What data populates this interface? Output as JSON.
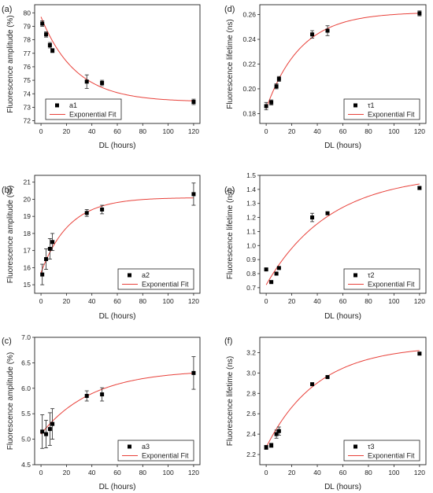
{
  "chart_data": [
    {
      "id": "a",
      "panel_label": "(a)",
      "type": "scatter",
      "xlabel": "DL (hours)",
      "ylabel": "Fluorescence amplitude (%)",
      "xlim": [
        -5,
        125
      ],
      "ylim": [
        71.8,
        80.6
      ],
      "xticks": [
        "0",
        "20",
        "40",
        "60",
        "80",
        "100",
        "120"
      ],
      "yticks": [
        "72",
        "73",
        "74",
        "75",
        "76",
        "77",
        "78",
        "79",
        "80"
      ],
      "legend": {
        "position": "bottom-left",
        "marker_label": "a1",
        "fit_label": "Exponential Fit"
      },
      "series": [
        {
          "name": "a1",
          "x": [
            1,
            4,
            7,
            9,
            36,
            48,
            120
          ],
          "y": [
            79.2,
            78.4,
            77.6,
            77.2,
            74.9,
            74.8,
            73.4
          ],
          "err": [
            0.2,
            0.2,
            0.2,
            0.15,
            0.5,
            0.2,
            0.2
          ]
        }
      ],
      "fit": {
        "y0": 73.4,
        "A": 6.3,
        "t": 27,
        "color": "#e8413a"
      }
    },
    {
      "id": "d",
      "panel_label": "(d)",
      "type": "scatter",
      "xlabel": "DL (hours)",
      "ylabel": "Fluorescence lifetime (ns)",
      "xlim": [
        -5,
        125
      ],
      "ylim": [
        0.172,
        0.268
      ],
      "xticks": [
        "0",
        "20",
        "40",
        "60",
        "80",
        "100",
        "120"
      ],
      "yticks": [
        "0.18",
        "0.20",
        "0.22",
        "0.24",
        "0.26"
      ],
      "legend": {
        "position": "bottom-right",
        "marker_label": "τ1",
        "fit_label": "Exponential Fit"
      },
      "series": [
        {
          "name": "τ1",
          "x": [
            0,
            4,
            8,
            10,
            36,
            48,
            120
          ],
          "y": [
            0.186,
            0.189,
            0.202,
            0.208,
            0.244,
            0.247,
            0.261
          ],
          "err": [
            0.003,
            0.002,
            0.002,
            0.002,
            0.003,
            0.004,
            0.002
          ]
        }
      ],
      "fit": {
        "y0": 0.262,
        "A": -0.078,
        "t": 27,
        "color": "#e8413a"
      }
    },
    {
      "id": "b",
      "panel_label": "(b)",
      "type": "scatter",
      "xlabel": "DL (hours)",
      "ylabel": "Fluorescence amplitude (%)",
      "xlim": [
        -5,
        125
      ],
      "ylim": [
        14.5,
        21.4
      ],
      "xticks": [
        "0",
        "20",
        "40",
        "60",
        "80",
        "100",
        "120"
      ],
      "yticks": [
        "15",
        "16",
        "17",
        "18",
        "19",
        "20",
        "21"
      ],
      "legend": {
        "position": "bottom-right",
        "marker_label": "a2",
        "fit_label": "Exponential Fit"
      },
      "series": [
        {
          "name": "a2",
          "x": [
            1,
            4,
            7,
            9,
            36,
            48,
            120
          ],
          "y": [
            15.6,
            16.5,
            17.1,
            17.5,
            19.2,
            19.4,
            20.3
          ],
          "err": [
            0.6,
            0.6,
            0.6,
            0.5,
            0.2,
            0.25,
            0.65
          ]
        }
      ],
      "fit": {
        "y0": 20.1,
        "A": -4.4,
        "t": 22,
        "color": "#e8413a"
      }
    },
    {
      "id": "e",
      "panel_label": "(e)",
      "type": "scatter",
      "xlabel": "DL (hours)",
      "ylabel": "Fluorescence lifetime (ns)",
      "xlim": [
        -5,
        125
      ],
      "ylim": [
        0.66,
        1.5
      ],
      "xticks": [
        "0",
        "20",
        "40",
        "60",
        "80",
        "100",
        "120"
      ],
      "yticks": [
        "0.7",
        "0.8",
        "0.9",
        "1.0",
        "1.1",
        "1.2",
        "1.3",
        "1.4",
        "1.5"
      ],
      "legend": {
        "position": "bottom-right",
        "marker_label": "τ2",
        "fit_label": "Exponential Fit"
      },
      "series": [
        {
          "name": "τ2",
          "x": [
            0,
            4,
            8,
            10,
            36,
            48,
            120
          ],
          "y": [
            0.83,
            0.74,
            0.8,
            0.84,
            1.2,
            1.23,
            1.41
          ],
          "err": [
            0.005,
            0.005,
            0.005,
            0.005,
            0.03,
            0.005,
            0.01
          ]
        }
      ],
      "fit": {
        "y0": 1.51,
        "A": -0.79,
        "t": 50,
        "color": "#e8413a"
      }
    },
    {
      "id": "c",
      "panel_label": "(c)",
      "type": "scatter",
      "xlabel": "DL (hours)",
      "ylabel": "Fluorescence amplitude (%)",
      "xlim": [
        -5,
        125
      ],
      "ylim": [
        4.5,
        7.0
      ],
      "xticks": [
        "0",
        "20",
        "40",
        "60",
        "80",
        "100",
        "120"
      ],
      "yticks": [
        "4.5",
        "5.0",
        "5.5",
        "6.0",
        "6.5",
        "7.0"
      ],
      "legend": {
        "position": "bottom-right",
        "marker_label": "a3",
        "fit_label": "Exponential Fit"
      },
      "series": [
        {
          "name": "a3",
          "x": [
            1,
            4,
            7,
            9,
            36,
            48,
            120
          ],
          "y": [
            5.15,
            5.1,
            5.2,
            5.3,
            5.85,
            5.88,
            6.3
          ],
          "err": [
            0.33,
            0.27,
            0.32,
            0.3,
            0.1,
            0.13,
            0.32
          ]
        }
      ],
      "fit": {
        "y0": 6.36,
        "A": -1.26,
        "t": 40,
        "color": "#e8413a"
      }
    },
    {
      "id": "f",
      "panel_label": "(f)",
      "type": "scatter",
      "xlabel": "DL (hours)",
      "ylabel": "Fluorescence lifetime (ns)",
      "xlim": [
        -5,
        125
      ],
      "ylim": [
        2.1,
        3.35
      ],
      "xticks": [
        "0",
        "20",
        "40",
        "60",
        "80",
        "100",
        "120"
      ],
      "yticks": [
        "2.2",
        "2.4",
        "2.6",
        "2.8",
        "3.0",
        "3.2"
      ],
      "legend": {
        "position": "bottom-right",
        "marker_label": "τ3",
        "fit_label": "Exponential Fit"
      },
      "series": [
        {
          "name": "τ3",
          "x": [
            0,
            4,
            8,
            10,
            36,
            48,
            120
          ],
          "y": [
            2.27,
            2.29,
            2.4,
            2.43,
            2.89,
            2.96,
            3.19
          ],
          "err": [
            0.02,
            0.02,
            0.04,
            0.04,
            0.01,
            0.01,
            0.01
          ]
        }
      ],
      "fit": {
        "y0": 3.27,
        "A": -1.0,
        "t": 40,
        "color": "#e8413a"
      }
    }
  ]
}
